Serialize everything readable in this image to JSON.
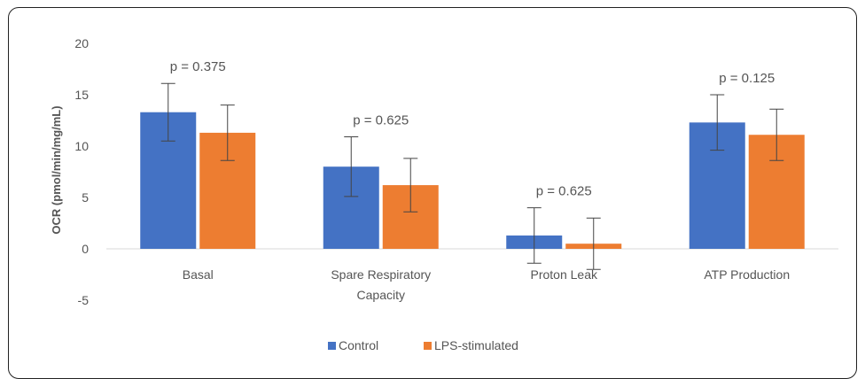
{
  "colors": {
    "control": "#4472c4",
    "lps": "#ed7d31",
    "axis": "#d9d9d9",
    "error": "#444444"
  },
  "chart_data": {
    "type": "bar",
    "ylabel": "OCR (pmol/min/mg/mL)",
    "ylim": [
      -5,
      20
    ],
    "yticks": [
      20,
      15,
      10,
      5,
      0,
      -5
    ],
    "grid": false,
    "legend_position": "bottom",
    "categories": [
      {
        "lines": [
          "Basal"
        ],
        "pvalue": "p = 0.375"
      },
      {
        "lines": [
          "Spare Respiratory",
          "Capacity"
        ],
        "pvalue": "p = 0.625"
      },
      {
        "lines": [
          "Proton Leak"
        ],
        "pvalue": "p = 0.625"
      },
      {
        "lines": [
          "ATP Production"
        ],
        "pvalue": "p = 0.125"
      }
    ],
    "series": [
      {
        "name": "Control",
        "color": "#4472c4",
        "values": [
          13.3,
          8.0,
          1.3,
          12.3
        ],
        "errors": [
          2.8,
          2.9,
          2.7,
          2.7
        ]
      },
      {
        "name": "LPS-stimulated",
        "color": "#ed7d31",
        "values": [
          11.3,
          6.2,
          0.5,
          11.1
        ],
        "errors": [
          2.7,
          2.6,
          2.5,
          2.5
        ]
      }
    ]
  }
}
